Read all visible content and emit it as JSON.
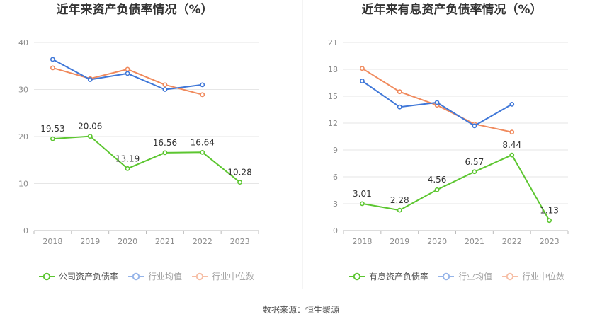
{
  "colors": {
    "company": "#5cc630",
    "industry_avg": "#3f77d8",
    "industry_median": "#f08a5d",
    "grid": "#e6e6e6",
    "axis": "#bbbbbb",
    "divider": "#e8e8e8"
  },
  "source_text": "数据来源：恒生聚源",
  "chart_data": [
    {
      "type": "line",
      "title": "近年来资产负债率情况（%）",
      "categories": [
        "2018",
        "2019",
        "2020",
        "2021",
        "2022",
        "2023"
      ],
      "ylim": [
        0,
        40
      ],
      "yticks": [
        0,
        10,
        20,
        30,
        40
      ],
      "grid": true,
      "legend_position": "bottom",
      "series": [
        {
          "name": "公司资产负债率",
          "key": "company",
          "values": [
            19.53,
            20.06,
            13.19,
            16.56,
            16.64,
            10.28
          ],
          "labels": [
            "19.53",
            "20.06",
            "13.19",
            "16.56",
            "16.64",
            "10.28"
          ]
        },
        {
          "name": "行业均值",
          "key": "industry_avg",
          "values": [
            36.4,
            32.1,
            33.4,
            30.0,
            31.0,
            null
          ]
        },
        {
          "name": "行业中位数",
          "key": "industry_median",
          "values": [
            34.6,
            32.3,
            34.3,
            31.0,
            28.9,
            null
          ]
        }
      ]
    },
    {
      "type": "line",
      "title": "近年来有息资产负债率情况（%）",
      "categories": [
        "2018",
        "2019",
        "2020",
        "2021",
        "2022",
        "2023"
      ],
      "ylim": [
        0,
        21
      ],
      "yticks": [
        0,
        3,
        6,
        9,
        12,
        15,
        18,
        21
      ],
      "grid": true,
      "legend_position": "bottom",
      "series": [
        {
          "name": "有息资产负债率",
          "key": "company",
          "values": [
            3.01,
            2.28,
            4.56,
            6.57,
            8.44,
            1.13
          ],
          "labels": [
            "3.01",
            "2.28",
            "4.56",
            "6.57",
            "8.44",
            "1.13"
          ]
        },
        {
          "name": "行业均值",
          "key": "industry_avg",
          "values": [
            16.7,
            13.8,
            14.3,
            11.7,
            14.1,
            null
          ]
        },
        {
          "name": "行业中位数",
          "key": "industry_median",
          "values": [
            18.1,
            15.5,
            14.0,
            11.9,
            11.0,
            null
          ]
        }
      ]
    }
  ]
}
